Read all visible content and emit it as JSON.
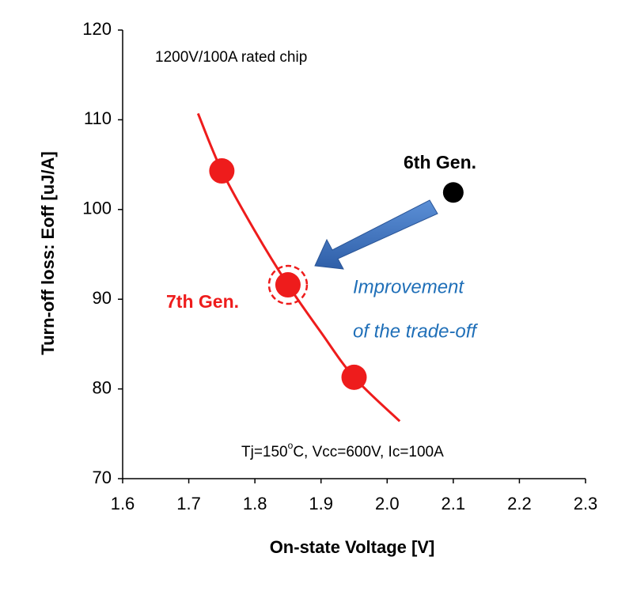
{
  "chart_data": {
    "type": "scatter",
    "x_label": "On-state Voltage [V]",
    "y_label": "Turn-off loss: Eoff [uJ/A]",
    "xlim": [
      1.6,
      2.3
    ],
    "xticks": [
      1.6,
      1.7,
      1.8,
      1.9,
      {
        "value": 2,
        "label": "2.0"
      },
      2.1,
      2.2,
      2.3
    ],
    "ylim": [
      70,
      120
    ],
    "yticks": [
      70,
      80,
      90,
      100,
      110,
      120
    ],
    "grid": false,
    "series": [
      {
        "name": "7th Gen.",
        "color": "#ee1c1c",
        "x": [
          1.75,
          1.85,
          1.95
        ],
        "values": [
          104.3,
          91.6,
          81.3
        ]
      },
      {
        "name": "6th Gen.",
        "color": "#000000",
        "x": [
          2.1
        ],
        "values": [
          101.9
        ]
      }
    ],
    "fit_curve": {
      "color": "#ee1c1c",
      "x": [
        1.714,
        1.75,
        1.8,
        1.85,
        1.9,
        1.95,
        2.019
      ],
      "values": [
        110.7,
        104.3,
        97.6,
        91.6,
        86.3,
        81.3,
        76.4
      ]
    },
    "annotations": {
      "chip": "1200V/100A rated chip",
      "conditions": [
        "Tj=150",
        "o",
        "C, Vcc=600V, Ic=100A"
      ],
      "improvement": [
        "Improvement",
        "of  the trade-off"
      ]
    }
  }
}
